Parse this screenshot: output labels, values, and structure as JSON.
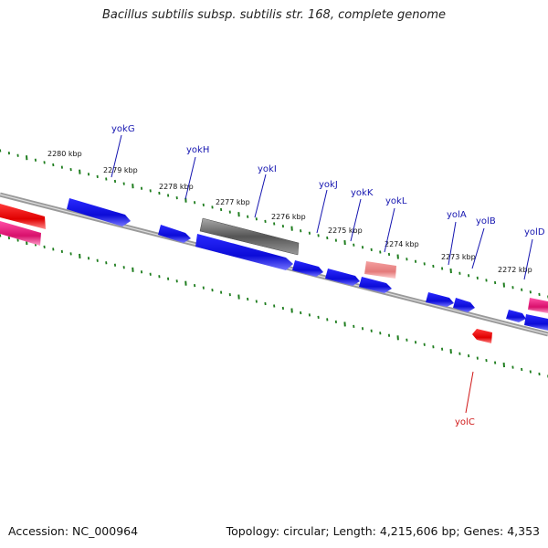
{
  "title": "Bacillus subtilis subsp. subtilis str. 168, complete genome",
  "footer": {
    "accession": "Accession: NC_000964",
    "summary": "Topology: circular; Length: 4,215,606 bp; Genes: 4,353"
  },
  "colors": {
    "forward_gene": "#1010e0",
    "selected_gene": "#666666",
    "highlight_gene": "#e88888",
    "reverse_red": "#ee1111",
    "reverse_pink": "#e0207a",
    "tick": "#1e7d1e",
    "backbone": "#888888",
    "label_forward": "#1515b0",
    "label_reverse": "#d01818"
  },
  "scale_labels": [
    "2280 kbp",
    "2279 kbp",
    "2278 kbp",
    "2277 kbp",
    "2276 kbp",
    "2275 kbp",
    "2274 kbp",
    "2273 kbp",
    "2272 kbp"
  ],
  "gene_labels": [
    "yokG",
    "yokH",
    "yokI",
    "yokJ",
    "yokK",
    "yokL",
    "yolA",
    "yolB",
    "yolD",
    "yolC"
  ]
}
